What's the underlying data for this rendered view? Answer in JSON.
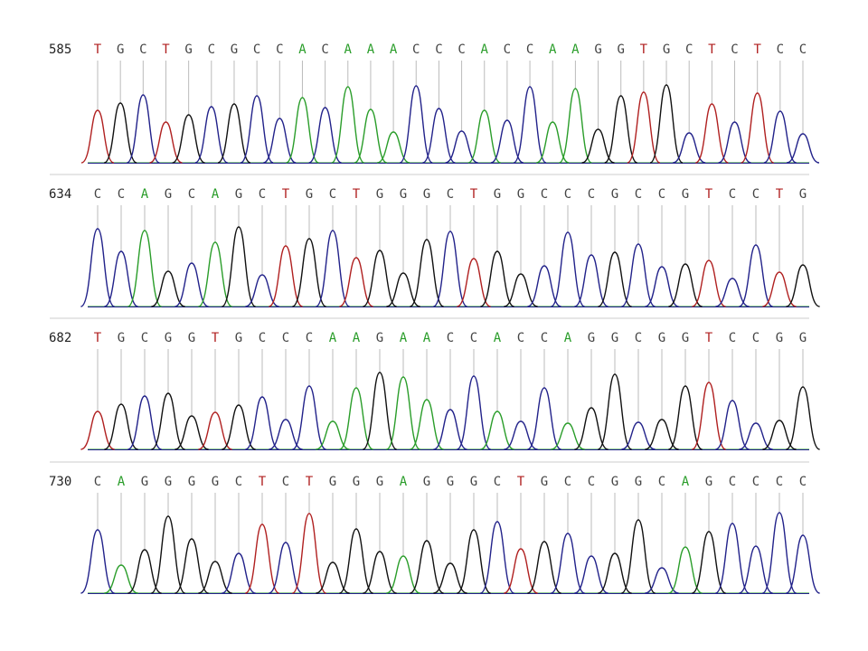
{
  "rows": [
    {
      "start": "585",
      "bases": [
        "T",
        "G",
        "C",
        "T",
        "G",
        "C",
        "G",
        "C",
        "C",
        "A",
        "C",
        "A",
        "A",
        "A",
        "C",
        "C",
        "C",
        "A",
        "C",
        "C",
        "A",
        "A",
        "G",
        "G",
        "T",
        "G",
        "C",
        "T",
        "C",
        "T",
        "C",
        "C"
      ]
    },
    {
      "start": "634",
      "bases": [
        "C",
        "C",
        "A",
        "G",
        "C",
        "A",
        "G",
        "C",
        "T",
        "G",
        "C",
        "T",
        "G",
        "G",
        "G",
        "C",
        "T",
        "G",
        "G",
        "C",
        "C",
        "C",
        "G",
        "C",
        "C",
        "G",
        "T",
        "C",
        "C",
        "T",
        "G"
      ]
    },
    {
      "start": "682",
      "bases": [
        "T",
        "G",
        "C",
        "G",
        "G",
        "T",
        "G",
        "C",
        "C",
        "C",
        "A",
        "A",
        "G",
        "A",
        "A",
        "C",
        "C",
        "A",
        "C",
        "C",
        "A",
        "G",
        "G",
        "C",
        "G",
        "G",
        "T",
        "C",
        "C",
        "G",
        "G"
      ]
    },
    {
      "start": "730",
      "bases": [
        "C",
        "A",
        "G",
        "G",
        "G",
        "G",
        "C",
        "T",
        "C",
        "T",
        "G",
        "G",
        "G",
        "A",
        "G",
        "G",
        "G",
        "C",
        "T",
        "G",
        "C",
        "C",
        "G",
        "G",
        "C",
        "A",
        "G",
        "C",
        "C",
        "C",
        "C"
      ]
    }
  ]
}
